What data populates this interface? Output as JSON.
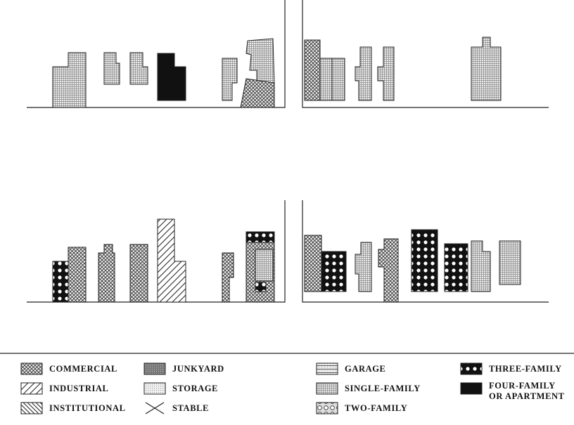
{
  "legend": {
    "items": [
      {
        "lines": [
          "COMMERCIAL"
        ]
      },
      {
        "lines": [
          "JUNKYARD"
        ]
      },
      {
        "lines": [
          "GARAGE"
        ]
      },
      {
        "lines": [
          "THREE-FAMILY"
        ]
      },
      {
        "lines": [
          "INDUSTRIAL"
        ]
      },
      {
        "lines": [
          "STORAGE"
        ]
      },
      {
        "lines": [
          "SINGLE-FAMILY"
        ]
      },
      {
        "lines": [
          "FOUR-FAMILY",
          "OR APARTMENT"
        ]
      },
      {
        "lines": [
          "INSTITUTIONAL"
        ]
      },
      {
        "lines": [
          "STABLE"
        ]
      },
      {
        "lines": [
          "TWO-FAMILY"
        ]
      }
    ]
  }
}
